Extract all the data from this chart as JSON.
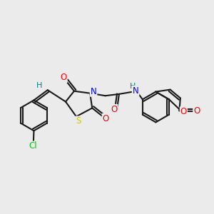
{
  "bg_color": "#ebebeb",
  "line_color": "#1a1a1a",
  "bond_width": 1.5,
  "atom_colors": {
    "O": "#ff0000",
    "N": "#0000ff",
    "S": "#cccc00",
    "Cl": "#00cc00",
    "H": "#008080",
    "C": "#1a1a1a"
  },
  "font_size": 8.5
}
